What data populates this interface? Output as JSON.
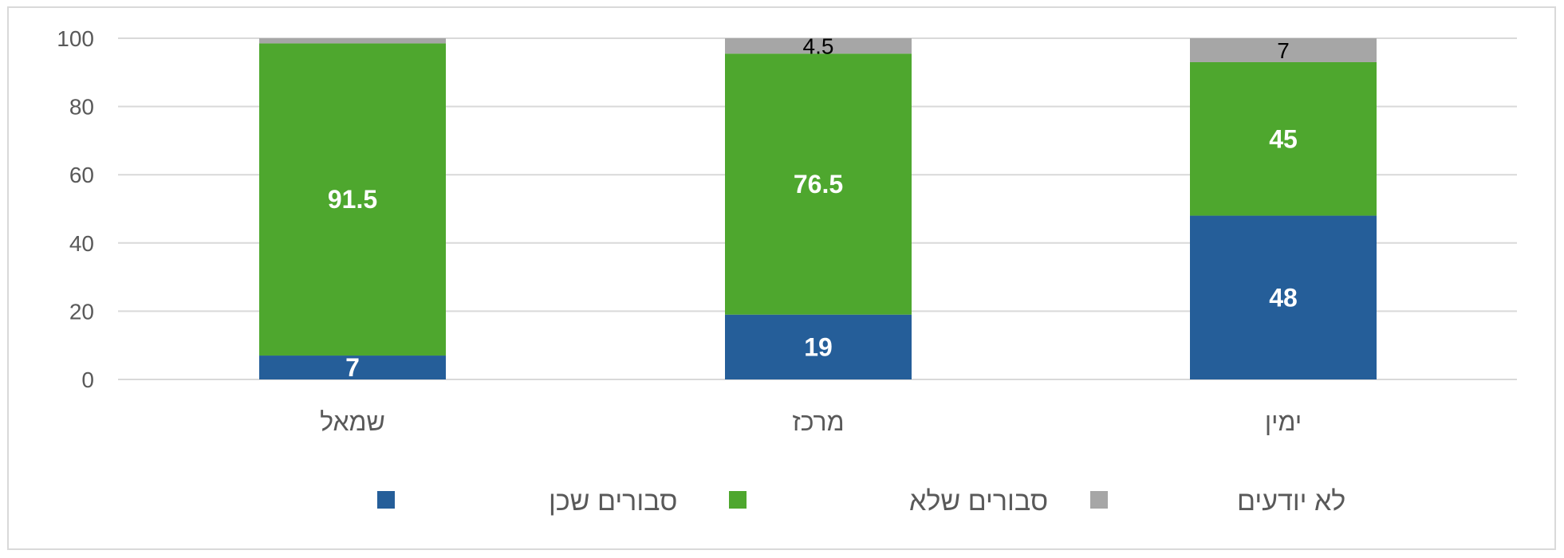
{
  "chart_data": {
    "type": "bar",
    "stacked": true,
    "categories": [
      "שמאל",
      "מרכז",
      "ימין"
    ],
    "series": [
      {
        "name": "סבורים שכן",
        "values": [
          7,
          19,
          48
        ],
        "color": "#255e99"
      },
      {
        "name": "סבורים שלא",
        "values": [
          91.5,
          76.5,
          45
        ],
        "color": "#4ea72e"
      },
      {
        "name": "לא יודעים",
        "values": [
          1.5,
          4.5,
          7
        ],
        "color": "#a6a6a6"
      }
    ],
    "data_labels": [
      [
        "7",
        "19",
        "48"
      ],
      [
        "91.5",
        "76.5",
        "45"
      ],
      [
        "",
        "4.5",
        "7"
      ]
    ],
    "yticks": [
      "0",
      "20",
      "40",
      "60",
      "80",
      "100"
    ],
    "ylim": [
      0,
      100
    ],
    "grid": true,
    "legend": "bottom",
    "xlabel": "",
    "ylabel": "",
    "title": ""
  }
}
